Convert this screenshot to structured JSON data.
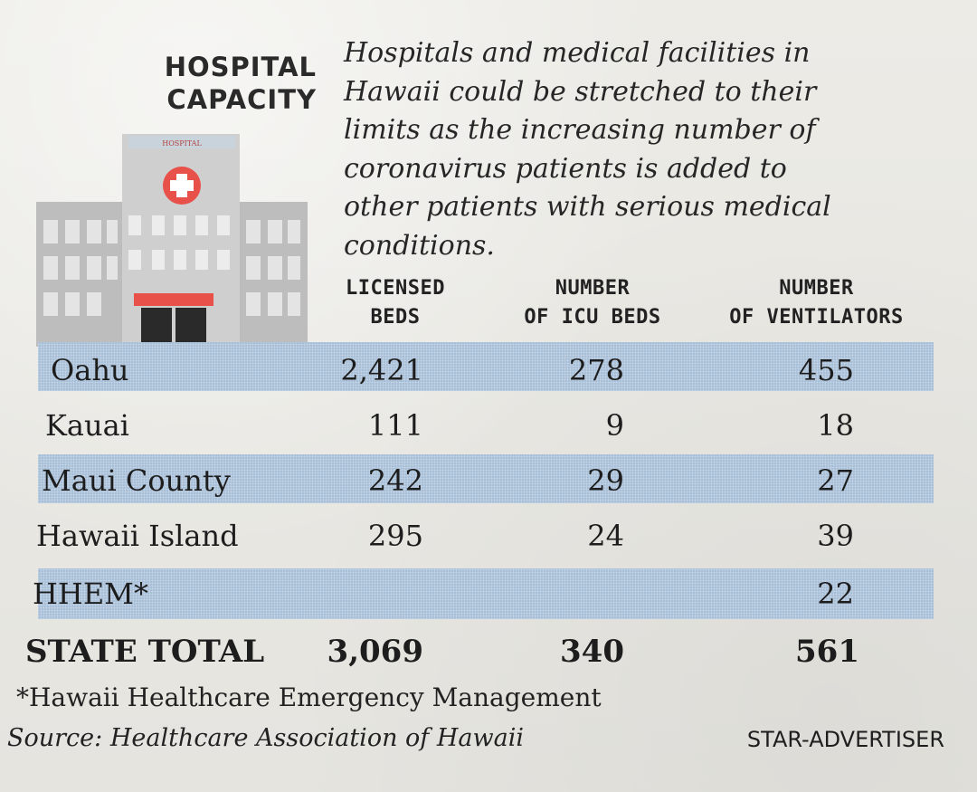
{
  "header": {
    "title_line1": "HOSPITAL",
    "title_line2": "CAPACITY",
    "intro_lines": [
      "Hospitals and medical facilities in",
      "Hawaii could be stretched to their",
      "limits as the increasing number of",
      "coronavirus patients is added to",
      "other patients with serious medical",
      "conditions."
    ]
  },
  "illustration": {
    "sign_text": "HOSPITAL",
    "icon": "hospital-building-icon",
    "cross_color": "#e8504a",
    "awning_color": "#e8504a"
  },
  "table": {
    "columns": [
      {
        "line1": "LICENSED",
        "line2": "BEDS"
      },
      {
        "line1": "NUMBER",
        "line2": "OF ICU BEDS"
      },
      {
        "line1": "NUMBER",
        "line2": "OF VENTILATORS"
      }
    ],
    "rows": [
      {
        "name": "Oahu",
        "beds": "2,421",
        "icu": "278",
        "vent": "455",
        "shaded": true
      },
      {
        "name": "Kauai",
        "beds": "111",
        "icu": "9",
        "vent": "18",
        "shaded": false
      },
      {
        "name": "Maui County",
        "beds": "242",
        "icu": "29",
        "vent": "27",
        "shaded": true
      },
      {
        "name": "Hawaii Island",
        "beds": "295",
        "icu": "24",
        "vent": "39",
        "shaded": false
      },
      {
        "name": "HHEM*",
        "beds": "",
        "icu": "",
        "vent": "22",
        "shaded": true
      }
    ],
    "total": {
      "name": "STATE TOTAL",
      "beds": "3,069",
      "icu": "340",
      "vent": "561"
    },
    "band_color": "#a8bfd8"
  },
  "footer": {
    "footnote": "*Hawaii Healthcare Emergency Management",
    "source": "Source: Healthcare Association of Hawaii",
    "credit": "STAR-ADVERTISER"
  }
}
